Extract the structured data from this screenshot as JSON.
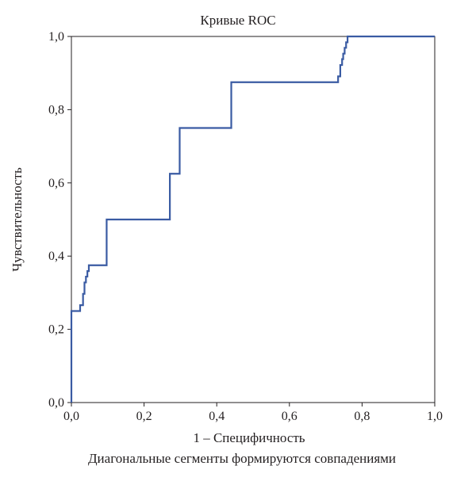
{
  "chart_data": {
    "type": "line",
    "title": "Кривые ROC",
    "xlabel": "1 – Специфичность",
    "ylabel": "Чувствительность",
    "footnote": "Диагональные сегменты формируются совпадениями",
    "xlim": [
      0,
      1
    ],
    "ylim": [
      0,
      1
    ],
    "x_ticks": [
      0,
      0.2,
      0.4,
      0.6,
      0.8,
      1.0
    ],
    "y_ticks": [
      0,
      0.2,
      0.4,
      0.6,
      0.8,
      1.0
    ],
    "x_tick_labels": [
      "0,0",
      "0,2",
      "0,4",
      "0,6",
      "0,8",
      "1,0"
    ],
    "y_tick_labels": [
      "0,0",
      "0,2",
      "0,4",
      "0,6",
      "0,8",
      "1,0"
    ],
    "grid": false,
    "series": [
      {
        "color": "#3a5ba3",
        "x": [
          0.0,
          0.0,
          0.0,
          0.024,
          0.024,
          0.032,
          0.032,
          0.036,
          0.036,
          0.04,
          0.04,
          0.044,
          0.044,
          0.048,
          0.048,
          0.097,
          0.097,
          0.271,
          0.271,
          0.286,
          0.286,
          0.298,
          0.298,
          0.44,
          0.44,
          0.734,
          0.734,
          0.74,
          0.74,
          0.745,
          0.745,
          0.748,
          0.748,
          0.752,
          0.752,
          0.756,
          0.756,
          0.76,
          0.76,
          1.0
        ],
        "y": [
          0.0,
          0.25,
          0.25,
          0.25,
          0.266,
          0.266,
          0.297,
          0.297,
          0.328,
          0.328,
          0.344,
          0.344,
          0.359,
          0.359,
          0.375,
          0.375,
          0.5,
          0.5,
          0.625,
          0.625,
          0.625,
          0.625,
          0.75,
          0.75,
          0.875,
          0.875,
          0.891,
          0.891,
          0.922,
          0.922,
          0.938,
          0.938,
          0.953,
          0.953,
          0.969,
          0.969,
          0.984,
          0.984,
          1.0,
          1.0
        ]
      }
    ]
  }
}
